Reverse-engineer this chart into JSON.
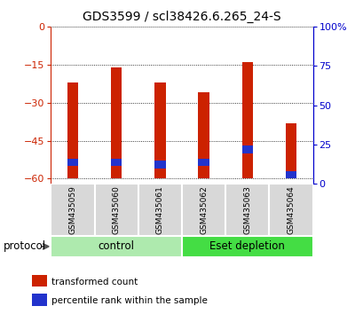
{
  "title": "GDS3599 / scl38426.6.265_24-S",
  "samples": [
    "GSM435059",
    "GSM435060",
    "GSM435061",
    "GSM435062",
    "GSM435063",
    "GSM435064"
  ],
  "red_top": [
    -22,
    -16,
    -22,
    -26,
    -14,
    -38
  ],
  "red_bottom": [
    -60,
    -60,
    -60,
    -60,
    -60,
    -60
  ],
  "blue_top": [
    -52,
    -52,
    -53,
    -52,
    -47,
    -57
  ],
  "blue_bottom": [
    -55,
    -55,
    -56,
    -55,
    -50,
    -60
  ],
  "ylim_left": [
    -62,
    0
  ],
  "ylim_right": [
    0,
    100
  ],
  "yticks_left": [
    0,
    -15,
    -30,
    -45,
    -60
  ],
  "yticks_right": [
    0,
    25,
    50,
    75,
    100
  ],
  "groups": [
    {
      "label": "control",
      "indices": [
        0,
        1,
        2
      ],
      "color": "#aeeaae"
    },
    {
      "label": "Eset depletion",
      "indices": [
        3,
        4,
        5
      ],
      "color": "#44dd44"
    }
  ],
  "bar_width": 0.25,
  "red_color": "#cc2200",
  "blue_color": "#2233cc",
  "left_axis_color": "#cc2200",
  "right_axis_color": "#0000cc",
  "protocol_label": "protocol",
  "legend_items": [
    {
      "label": "transformed count",
      "color": "#cc2200"
    },
    {
      "label": "percentile rank within the sample",
      "color": "#2233cc"
    }
  ]
}
